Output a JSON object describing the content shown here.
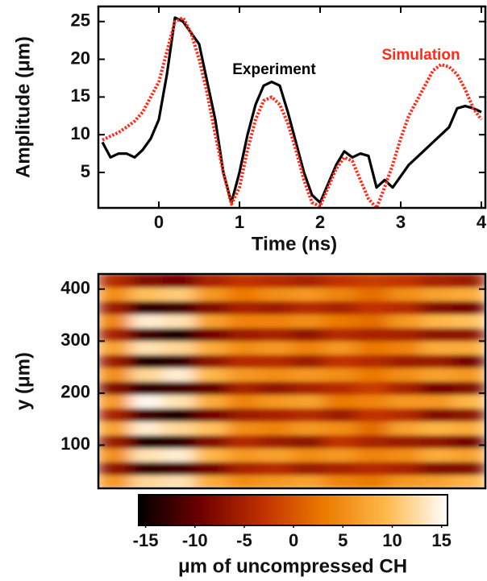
{
  "chart_data": [
    {
      "type": "line",
      "xlabel": "Time (ns)",
      "ylabel": "Amplitude (μm)",
      "x": [
        -0.7,
        -0.6,
        -0.5,
        -0.4,
        -0.3,
        -0.2,
        -0.1,
        0,
        0.1,
        0.2,
        0.3,
        0.4,
        0.5,
        0.6,
        0.7,
        0.8,
        0.9,
        1.0,
        1.1,
        1.2,
        1.3,
        1.4,
        1.5,
        1.6,
        1.7,
        1.8,
        1.9,
        2.0,
        2.1,
        2.2,
        2.3,
        2.4,
        2.5,
        2.6,
        2.7,
        2.8,
        2.9,
        3.0,
        3.1,
        3.2,
        3.3,
        3.4,
        3.5,
        3.6,
        3.7,
        3.8,
        3.9,
        4.0
      ],
      "series": [
        {
          "name": "Experiment",
          "color": "#000000",
          "style": "solid",
          "values": [
            9,
            7,
            7.5,
            7.5,
            7,
            8,
            9.5,
            12,
            18,
            25.5,
            25,
            23.5,
            22,
            17,
            12,
            5,
            1,
            5,
            10,
            14,
            16.5,
            17,
            16.5,
            13,
            9,
            5,
            2,
            1,
            3.5,
            6,
            7.8,
            7,
            7.5,
            7.2,
            3,
            4,
            3,
            4.5,
            6,
            7,
            8,
            9,
            10,
            11,
            13.5,
            13.8,
            13.5,
            13
          ]
        },
        {
          "name": "Simulation",
          "color": "#ff2a1a",
          "style": "dotted",
          "values": [
            9.3,
            9.8,
            10.3,
            11,
            11.8,
            13,
            15,
            17,
            21,
            25,
            25.5,
            23.5,
            20,
            15.5,
            10,
            5,
            0.8,
            3,
            8,
            12,
            14.5,
            15,
            14,
            11.5,
            8,
            4,
            1,
            0.5,
            3,
            5.5,
            7,
            6.5,
            4,
            1.5,
            0.3,
            3,
            6,
            9.5,
            12.5,
            14.5,
            16.5,
            18.5,
            19.3,
            19,
            18,
            16,
            13.5,
            12
          ]
        }
      ],
      "xlim": [
        -0.75,
        4.05
      ],
      "xticks": [
        0,
        1,
        2,
        3,
        4
      ],
      "ylim": [
        0.3,
        27
      ],
      "yticks": [
        5,
        10,
        15,
        20,
        25
      ]
    },
    {
      "type": "heatmap",
      "ylabel": "y (μm)",
      "ylim": [
        17,
        429
      ],
      "yticks": [
        100,
        200,
        300,
        400
      ],
      "z": [
        [
          6,
          12,
          13,
          8,
          5,
          6,
          7,
          4,
          3,
          6,
          7,
          9
        ],
        [
          -7,
          -13,
          -12,
          -9,
          -5,
          -4,
          -6,
          -5,
          -4,
          -5,
          -8,
          -8
        ],
        [
          5,
          13,
          14,
          9,
          6,
          7,
          5,
          6,
          4,
          5,
          8,
          7
        ],
        [
          -6,
          -14,
          -13,
          -8,
          -4,
          -6,
          -7,
          -3,
          -5,
          -6,
          -7,
          -9
        ],
        [
          7,
          14,
          12,
          10,
          5,
          4,
          6,
          5,
          2,
          7,
          9,
          8
        ],
        [
          -5,
          -12,
          -14,
          -9,
          -6,
          -5,
          -4,
          -6,
          -3,
          -4,
          -8,
          -7
        ],
        [
          6,
          15,
          13,
          8,
          4,
          6,
          7,
          3,
          4,
          6,
          6,
          9
        ],
        [
          -8,
          -13,
          -12,
          -10,
          -5,
          -7,
          -5,
          -4,
          -2,
          -5,
          -9,
          -8
        ],
        [
          5,
          12,
          14,
          9,
          6,
          5,
          6,
          5,
          3,
          5,
          7,
          6
        ],
        [
          -6,
          -14,
          -13,
          -7,
          -4,
          -4,
          -6,
          -3,
          -4,
          -6,
          -6,
          -9
        ],
        [
          7,
          13,
          12,
          8,
          5,
          6,
          4,
          6,
          3,
          4,
          8,
          8
        ],
        [
          -5,
          -12,
          -14,
          -9,
          -6,
          -5,
          -7,
          -4,
          -5,
          -5,
          -7,
          -7
        ],
        [
          4,
          14,
          13,
          7,
          4,
          4,
          5,
          3,
          2,
          6,
          9,
          10
        ],
        [
          -6,
          -13,
          -12,
          -8,
          -5,
          -6,
          -4,
          -5,
          -3,
          -4,
          -8,
          -9
        ],
        [
          5,
          10,
          11,
          6,
          3,
          5,
          6,
          4,
          2,
          5,
          7,
          8
        ],
        [
          -4,
          -8,
          -9,
          -5,
          -3,
          -4,
          -5,
          -3,
          -2,
          -3,
          -5,
          -6
        ]
      ],
      "colormap": [
        "#000000",
        "#6e0000",
        "#c03000",
        "#ec7a00",
        "#ffb84a",
        "#ffffff"
      ],
      "zlim": [
        -15.7,
        15.6
      ],
      "zticks": [
        -15,
        -10,
        -5,
        0,
        5,
        10,
        15
      ],
      "zlabel": "μm of uncompressed CH"
    }
  ]
}
